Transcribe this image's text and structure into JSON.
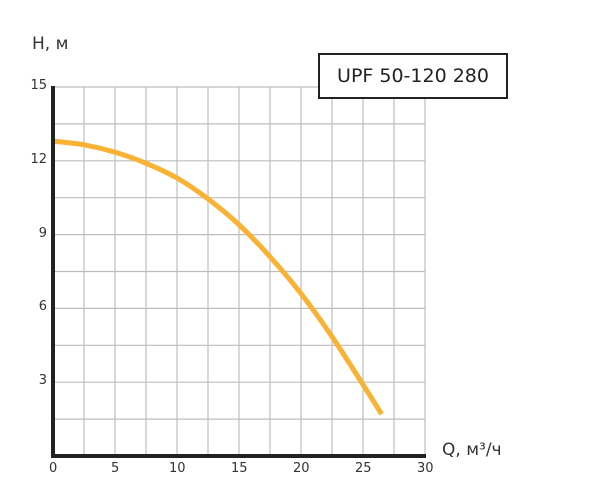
{
  "chart_data": {
    "type": "line",
    "title": "UPF 50-120 280",
    "xlabel": "Q, м³/ч",
    "ylabel": "H, м",
    "xlim": [
      0,
      30
    ],
    "ylim": [
      0,
      15
    ],
    "x_ticks": [
      0,
      5,
      10,
      15,
      20,
      25,
      30
    ],
    "y_ticks": [
      3,
      6,
      9,
      12,
      15
    ],
    "grid": true,
    "grid_x_step": 2.5,
    "grid_y_step": 1.5,
    "legend": null,
    "series": [
      {
        "name": "UPF 50-120 280",
        "color": "#F9B233",
        "x": [
          0,
          2.5,
          5,
          7.5,
          10,
          12.5,
          15,
          17.5,
          20,
          22.5,
          25,
          26.5
        ],
        "y": [
          12.8,
          12.65,
          12.35,
          11.9,
          11.3,
          10.45,
          9.4,
          8.1,
          6.6,
          4.85,
          2.9,
          1.7
        ]
      }
    ]
  },
  "labels": {
    "title": "UPF 50-120 280",
    "xlabel": "Q, м³/ч",
    "ylabel": "H, м"
  }
}
